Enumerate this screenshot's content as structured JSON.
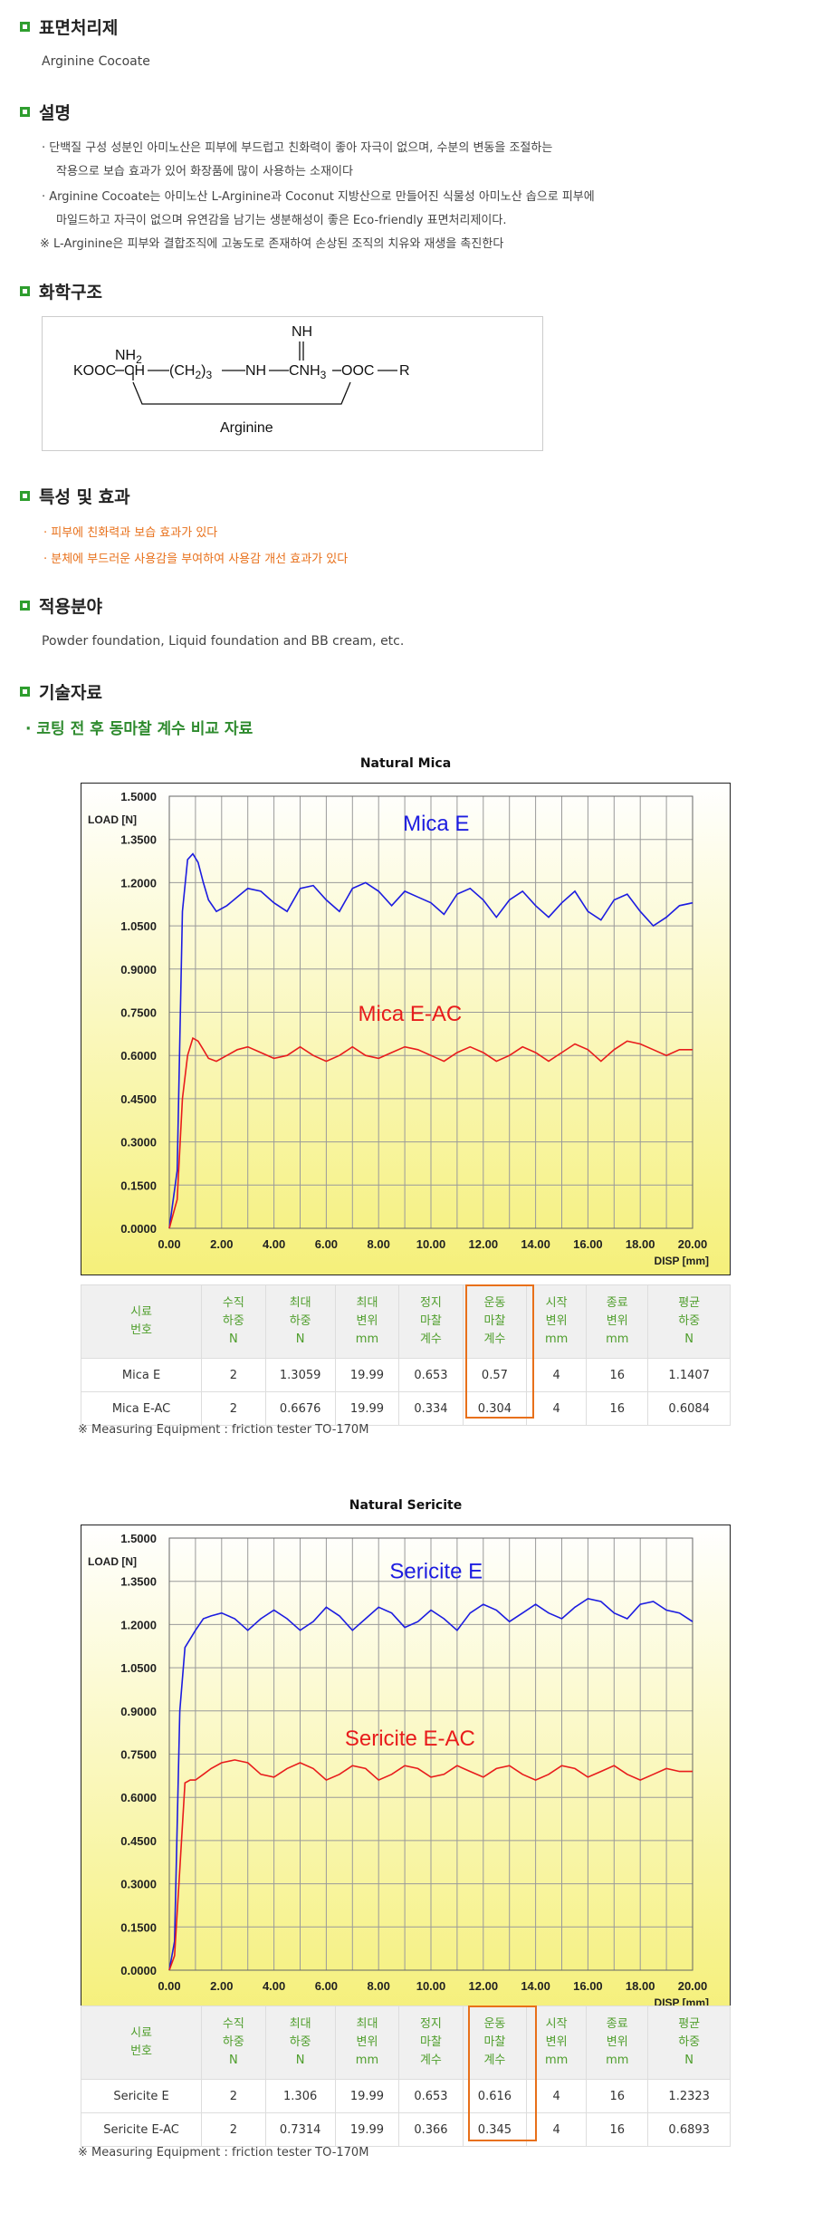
{
  "sections": {
    "s1": {
      "title": "표면처리제",
      "text": "Arginine Cocoate"
    },
    "s2": {
      "title": "설명",
      "lines": [
        "· 단백질 구성 성분인 아미노산은 피부에 부드럽고 친화력이 좋아 자극이 없으며, 수분의 변동을 조절하는",
        "작용으로 보습 효과가 있어 화장품에 많이 사용하는 소재이다",
        "· Arginine Cocoate는 아미노산 L-Arginine과 Coconut 지방산으로 만들어진 식물성 아미노산 솝으로 피부에",
        "마일드하고 자극이 없으며 유연감을 남기는 생분해성이 좋은 Eco-friendly 표면처리제이다.",
        "※ L-Arginine은 피부와 결합조직에 고농도로 존재하여 손상된 조직의 치유와 재생을 촉진한다"
      ]
    },
    "s3": {
      "title": "화학구조",
      "formula": {
        "kooc": "KOOC",
        "ch": "CH",
        "nh2": "NH",
        "nh2_sub": "2",
        "ch2": "(CH",
        "ch2_sub": "2",
        "ch2_sub2": "3",
        "nh": "NH",
        "nh_top": "NH",
        "cnh": "CNH",
        "cnh_sub": "3",
        "ooc": "OOC",
        "r": "R",
        "label": "Arginine"
      }
    },
    "s4": {
      "title": "특성 및 효과",
      "items": [
        "· 피부에 친화력과 보습 효과가 있다",
        "· 분체에 부드러운 사용감을 부여하여 사용감 개선 효과가 있다"
      ]
    },
    "s5": {
      "title": "적용분야",
      "text": "Powder foundation, Liquid foundation and BB cream, etc."
    },
    "s6": {
      "title": "기술자료",
      "subtitle": "· 코팅 전 후 동마찰 계수 비교 자료"
    }
  },
  "table_headers": [
    [
      "시료",
      "번호"
    ],
    [
      "수직",
      "하중",
      "N"
    ],
    [
      "최대",
      "하중",
      "N"
    ],
    [
      "최대",
      "변위",
      "mm"
    ],
    [
      "정지",
      "마찰",
      "계수"
    ],
    [
      "운동",
      "마찰",
      "계수"
    ],
    [
      "시작",
      "변위",
      "mm"
    ],
    [
      "종료",
      "변위",
      "mm"
    ],
    [
      "평균",
      "하중",
      "N"
    ]
  ],
  "measuring_note": "※ Measuring Equipment : friction tester TO-170M",
  "colors": {
    "chart_bg_top": "#ffffff",
    "chart_bg_bottom": "#f5f07a",
    "series1": "#1c1ce0",
    "series2": "#e81c1c",
    "accent_green": "#2e8b2e",
    "accent_orange": "#e8701a"
  },
  "chart_data": [
    {
      "type": "line",
      "title": "Natural Mica",
      "ylabel": "LOAD [N]",
      "xlabel": "DISP [mm]",
      "xlim": [
        0,
        20
      ],
      "ylim": [
        0,
        1.5
      ],
      "xticks": [
        "0.00",
        "2.00",
        "4.00",
        "6.00",
        "8.00",
        "10.00",
        "12.00",
        "14.00",
        "16.00",
        "18.00",
        "20.00"
      ],
      "yticks": [
        "0.0000",
        "0.1500",
        "0.3000",
        "0.4500",
        "0.6000",
        "0.7500",
        "0.9000",
        "1.0500",
        "1.2000",
        "1.3500",
        "1.5000"
      ],
      "grid": true,
      "series": [
        {
          "name": "Mica  E",
          "color": "#1c1ce0",
          "x": [
            0.3,
            0.5,
            0.7,
            0.9,
            1.1,
            1.3,
            1.5,
            1.8,
            2.2,
            2.6,
            3.0,
            3.5,
            4.0,
            4.5,
            5.0,
            5.5,
            6.0,
            6.5,
            7.0,
            7.5,
            8.0,
            8.5,
            9.0,
            9.5,
            10.0,
            10.5,
            11.0,
            11.5,
            12.0,
            12.5,
            13.0,
            13.5,
            14.0,
            14.5,
            15.0,
            15.5,
            16.0,
            16.5,
            17.0,
            17.5,
            18.0,
            18.5,
            19.0,
            19.5,
            20.0
          ],
          "y": [
            0.2,
            1.1,
            1.28,
            1.3,
            1.27,
            1.2,
            1.14,
            1.1,
            1.12,
            1.15,
            1.18,
            1.17,
            1.13,
            1.1,
            1.18,
            1.19,
            1.14,
            1.1,
            1.18,
            1.2,
            1.17,
            1.12,
            1.17,
            1.15,
            1.13,
            1.09,
            1.16,
            1.18,
            1.14,
            1.08,
            1.14,
            1.17,
            1.12,
            1.08,
            1.13,
            1.17,
            1.1,
            1.07,
            1.14,
            1.16,
            1.1,
            1.05,
            1.08,
            1.12,
            1.13
          ]
        },
        {
          "name": "Mica  E-AC",
          "color": "#e81c1c",
          "x": [
            0.3,
            0.5,
            0.7,
            0.9,
            1.1,
            1.3,
            1.5,
            1.8,
            2.2,
            2.6,
            3.0,
            3.5,
            4.0,
            4.5,
            5.0,
            5.5,
            6.0,
            6.5,
            7.0,
            7.5,
            8.0,
            8.5,
            9.0,
            9.5,
            10.0,
            10.5,
            11.0,
            11.5,
            12.0,
            12.5,
            13.0,
            13.5,
            14.0,
            14.5,
            15.0,
            15.5,
            16.0,
            16.5,
            17.0,
            17.5,
            18.0,
            18.5,
            19.0,
            19.5,
            20.0
          ],
          "y": [
            0.1,
            0.45,
            0.6,
            0.66,
            0.65,
            0.62,
            0.59,
            0.58,
            0.6,
            0.62,
            0.63,
            0.61,
            0.59,
            0.6,
            0.63,
            0.6,
            0.58,
            0.6,
            0.63,
            0.6,
            0.59,
            0.61,
            0.63,
            0.62,
            0.6,
            0.58,
            0.61,
            0.63,
            0.61,
            0.58,
            0.6,
            0.63,
            0.61,
            0.58,
            0.61,
            0.64,
            0.62,
            0.58,
            0.62,
            0.65,
            0.64,
            0.62,
            0.6,
            0.62,
            0.62
          ]
        }
      ]
    },
    {
      "type": "line",
      "title": "Natural Sericite",
      "ylabel": "LOAD [N]",
      "xlabel": "DISP [mm]",
      "xlim": [
        0,
        20
      ],
      "ylim": [
        0,
        1.5
      ],
      "xticks": [
        "0.00",
        "2.00",
        "4.00",
        "6.00",
        "8.00",
        "10.00",
        "12.00",
        "14.00",
        "16.00",
        "18.00",
        "20.00"
      ],
      "yticks": [
        "0.0000",
        "0.1500",
        "0.3000",
        "0.4500",
        "0.6000",
        "0.7500",
        "0.9000",
        "1.0500",
        "1.2000",
        "1.3500",
        "1.5000"
      ],
      "grid": true,
      "series": [
        {
          "name": "Sericite  E",
          "color": "#1c1ce0",
          "x": [
            0.2,
            0.4,
            0.6,
            0.8,
            1.0,
            1.3,
            1.6,
            2.0,
            2.5,
            3.0,
            3.5,
            4.0,
            4.5,
            5.0,
            5.5,
            6.0,
            6.5,
            7.0,
            7.5,
            8.0,
            8.5,
            9.0,
            9.5,
            10.0,
            10.5,
            11.0,
            11.5,
            12.0,
            12.5,
            13.0,
            13.5,
            14.0,
            14.5,
            15.0,
            15.5,
            16.0,
            16.5,
            17.0,
            17.5,
            18.0,
            18.5,
            19.0,
            19.5,
            20.0
          ],
          "y": [
            0.1,
            0.9,
            1.12,
            1.15,
            1.18,
            1.22,
            1.23,
            1.24,
            1.22,
            1.18,
            1.22,
            1.25,
            1.22,
            1.18,
            1.21,
            1.26,
            1.23,
            1.18,
            1.22,
            1.26,
            1.24,
            1.19,
            1.21,
            1.25,
            1.22,
            1.18,
            1.24,
            1.27,
            1.25,
            1.21,
            1.24,
            1.27,
            1.24,
            1.22,
            1.26,
            1.29,
            1.28,
            1.24,
            1.22,
            1.27,
            1.28,
            1.25,
            1.24,
            1.21
          ]
        },
        {
          "name": "Sericite  E-AC",
          "color": "#e81c1c",
          "x": [
            0.2,
            0.4,
            0.6,
            0.8,
            1.0,
            1.3,
            1.6,
            2.0,
            2.5,
            3.0,
            3.5,
            4.0,
            4.5,
            5.0,
            5.5,
            6.0,
            6.5,
            7.0,
            7.5,
            8.0,
            8.5,
            9.0,
            9.5,
            10.0,
            10.5,
            11.0,
            11.5,
            12.0,
            12.5,
            13.0,
            13.5,
            14.0,
            14.5,
            15.0,
            15.5,
            16.0,
            16.5,
            17.0,
            17.5,
            18.0,
            18.5,
            19.0,
            19.5,
            20.0
          ],
          "y": [
            0.05,
            0.35,
            0.65,
            0.66,
            0.66,
            0.68,
            0.7,
            0.72,
            0.73,
            0.72,
            0.68,
            0.67,
            0.7,
            0.72,
            0.7,
            0.66,
            0.68,
            0.71,
            0.7,
            0.66,
            0.68,
            0.71,
            0.7,
            0.67,
            0.68,
            0.71,
            0.69,
            0.67,
            0.7,
            0.71,
            0.68,
            0.66,
            0.68,
            0.71,
            0.7,
            0.67,
            0.69,
            0.71,
            0.68,
            0.66,
            0.68,
            0.7,
            0.69,
            0.69
          ]
        }
      ]
    }
  ],
  "tables": [
    {
      "rows": [
        [
          "Mica E",
          "2",
          "1.3059",
          "19.99",
          "0.653",
          "0.57",
          "4",
          "16",
          "1.1407"
        ],
        [
          "Mica E-AC",
          "2",
          "0.6676",
          "19.99",
          "0.334",
          "0.304",
          "4",
          "16",
          "0.6084"
        ]
      ]
    },
    {
      "rows": [
        [
          "Sericite E",
          "2",
          "1.306",
          "19.99",
          "0.653",
          "0.616",
          "4",
          "16",
          "1.2323"
        ],
        [
          "Sericite E-AC",
          "2",
          "0.7314",
          "19.99",
          "0.366",
          "0.345",
          "4",
          "16",
          "0.6893"
        ]
      ]
    }
  ]
}
